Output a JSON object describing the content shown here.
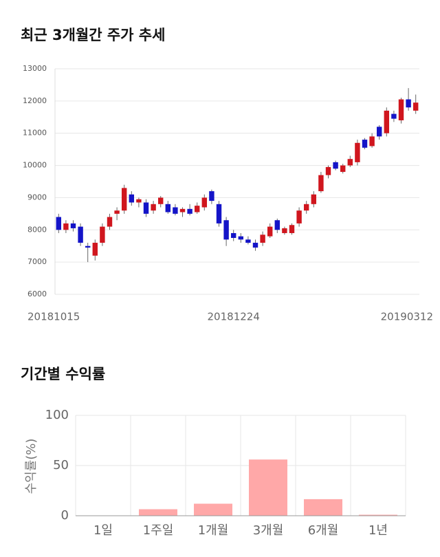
{
  "chart_data": [
    {
      "type": "candlestick",
      "title": "최근 3개월간 주가 추세",
      "categories": [
        "20181015",
        null,
        null,
        null,
        null,
        null,
        null,
        null,
        null,
        null,
        null,
        null,
        null,
        null,
        null,
        null,
        null,
        null,
        null,
        null,
        null,
        null,
        null,
        null,
        "20181224",
        null,
        null,
        null,
        null,
        null,
        null,
        null,
        null,
        null,
        null,
        null,
        null,
        null,
        null,
        null,
        null,
        null,
        null,
        null,
        null,
        null,
        null,
        null,
        null,
        "20190312"
      ],
      "open": [
        8400,
        8000,
        8200,
        8100,
        7500,
        7200,
        7600,
        8100,
        8500,
        8600,
        9100,
        8850,
        8850,
        8600,
        8800,
        8800,
        8700,
        8550,
        8650,
        8550,
        8700,
        9200,
        8800,
        8300,
        7900,
        7800,
        7700,
        7600,
        7600,
        7800,
        8300,
        7900,
        7900,
        8200,
        8600,
        8800,
        9200,
        9700,
        10100,
        9800,
        10000,
        10100,
        10800,
        10600,
        11200,
        11000,
        11600,
        11400,
        12050,
        11700
      ],
      "high": [
        8500,
        8300,
        8300,
        8200,
        7600,
        7700,
        8200,
        8500,
        8700,
        9400,
        9200,
        9000,
        8950,
        8900,
        9050,
        8900,
        8800,
        8700,
        8800,
        8850,
        9100,
        9250,
        8900,
        8400,
        8000,
        7900,
        7800,
        7700,
        7950,
        8200,
        8350,
        8100,
        8200,
        8700,
        8900,
        9200,
        9800,
        10000,
        10150,
        10050,
        10300,
        10800,
        10850,
        11000,
        11250,
        11800,
        11700,
        12100,
        12400,
        12200
      ],
      "low": [
        7900,
        7900,
        7950,
        7500,
        7000,
        7050,
        7500,
        8000,
        8300,
        8500,
        8750,
        8700,
        8400,
        8500,
        8700,
        8500,
        8450,
        8400,
        8450,
        8500,
        8600,
        8800,
        8100,
        7500,
        7650,
        7600,
        7550,
        7350,
        7500,
        7750,
        7900,
        7850,
        7850,
        8100,
        8500,
        8700,
        9150,
        9600,
        9850,
        9750,
        9950,
        10000,
        10500,
        10550,
        10800,
        10900,
        11350,
        11300,
        11700,
        11600
      ],
      "close": [
        8000,
        8200,
        8050,
        7600,
        7450,
        7600,
        8100,
        8400,
        8600,
        9300,
        8850,
        8950,
        8500,
        8800,
        9000,
        8550,
        8500,
        8650,
        8500,
        8750,
        9000,
        8900,
        8200,
        7700,
        7750,
        7700,
        7600,
        7450,
        7850,
        8100,
        8000,
        8050,
        8150,
        8600,
        8800,
        9100,
        9700,
        9950,
        9900,
        10000,
        10200,
        10700,
        10550,
        10900,
        10900,
        11700,
        11450,
        12050,
        11800,
        11950
      ],
      "up_color": "#d0161e",
      "down_color": "#1414c8",
      "ylim": [
        6000,
        13000
      ],
      "yticks": [
        6000,
        7000,
        8000,
        9000,
        10000,
        11000,
        12000,
        13000
      ],
      "grid": true
    },
    {
      "type": "bar",
      "title": "기간별 수익률",
      "categories": [
        "1일",
        "1주일",
        "1개월",
        "3개월",
        "6개월",
        "1년"
      ],
      "values": [
        0,
        6.5,
        12,
        56,
        16.5,
        1
      ],
      "color": "#ffa8a8",
      "ylabel": "수익률(%)",
      "ylim": [
        0,
        100
      ],
      "yticks": [
        0,
        50,
        100
      ],
      "grid": true
    }
  ]
}
